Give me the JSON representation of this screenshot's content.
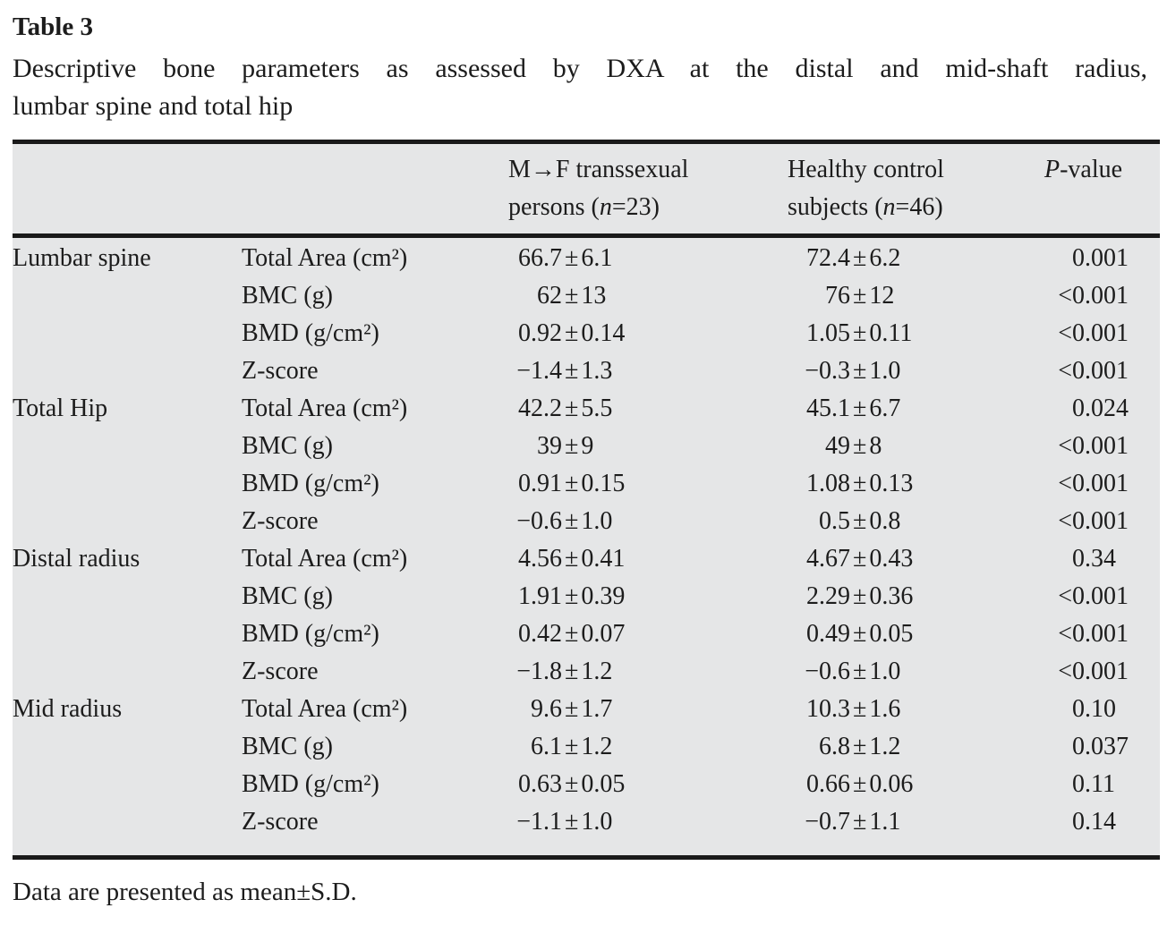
{
  "page": {
    "title": "Table 3",
    "caption_line1": "Descriptive bone parameters as assessed by DXA at the distal and mid-shaft radius,",
    "caption_line2": "lumbar spine and total hip",
    "footnote": "Data are presented as mean±S.D."
  },
  "table": {
    "header": {
      "col_group": "",
      "col_param": "",
      "col_mtf": {
        "line1": "M→F transsexual",
        "line2_prefix": "persons (",
        "line2_n": "n",
        "line2_suffix": "=23)"
      },
      "col_control": {
        "line1": "Healthy control",
        "line2_prefix": "subjects (",
        "line2_n": "n",
        "line2_suffix": "=46)"
      },
      "col_p": {
        "italic": "P",
        "suffix": "-value"
      }
    },
    "groups": [
      {
        "name": "Lumbar spine",
        "rows": [
          {
            "param": "Total Area (cm²)",
            "mtf": "66.7±6.1",
            "control": "72.4±6.2",
            "p": "0.001"
          },
          {
            "param": "BMC (g)",
            "mtf": "62±13",
            "control": "76±12",
            "p": "<0.001"
          },
          {
            "param": "BMD (g/cm²)",
            "mtf": "0.92±0.14",
            "control": "1.05±0.11",
            "p": "<0.001"
          },
          {
            "param": "Z-score",
            "mtf": "−1.4±1.3",
            "control": "−0.3±1.0",
            "p": "<0.001"
          }
        ]
      },
      {
        "name": "Total Hip",
        "rows": [
          {
            "param": "Total Area (cm²)",
            "mtf": "42.2±5.5",
            "control": "45.1±6.7",
            "p": "0.024"
          },
          {
            "param": "BMC (g)",
            "mtf": "39±9",
            "control": "49±8",
            "p": "<0.001"
          },
          {
            "param": "BMD (g/cm²)",
            "mtf": "0.91±0.15",
            "control": "1.08±0.13",
            "p": "<0.001"
          },
          {
            "param": "Z-score",
            "mtf": "−0.6±1.0",
            "control": "0.5±0.8",
            "p": "<0.001"
          }
        ]
      },
      {
        "name": "Distal radius",
        "rows": [
          {
            "param": "Total Area (cm²)",
            "mtf": "4.56±0.41",
            "control": "4.67±0.43",
            "p": "0.34"
          },
          {
            "param": "BMC (g)",
            "mtf": "1.91±0.39",
            "control": "2.29±0.36",
            "p": "<0.001"
          },
          {
            "param": "BMD (g/cm²)",
            "mtf": "0.42±0.07",
            "control": "0.49±0.05",
            "p": "<0.001"
          },
          {
            "param": "Z-score",
            "mtf": "−1.8±1.2",
            "control": "−0.6±1.0",
            "p": "<0.001"
          }
        ]
      },
      {
        "name": "Mid radius",
        "rows": [
          {
            "param": "Total Area (cm²)",
            "mtf": "9.6±1.7",
            "control": "10.3±1.6",
            "p": "0.10"
          },
          {
            "param": "BMC (g)",
            "mtf": "6.1±1.2",
            "control": "6.8±1.2",
            "p": "0.037"
          },
          {
            "param": "BMD (g/cm²)",
            "mtf": "0.63±0.05",
            "control": "0.66±0.06",
            "p": "0.11"
          },
          {
            "param": "Z-score",
            "mtf": "−1.1±1.0",
            "control": "−0.7±1.1",
            "p": "0.14"
          }
        ]
      }
    ]
  },
  "colors": {
    "table_background": "#e5e6e7",
    "rule": "#1a1a1a",
    "text": "#1c1c1c"
  }
}
